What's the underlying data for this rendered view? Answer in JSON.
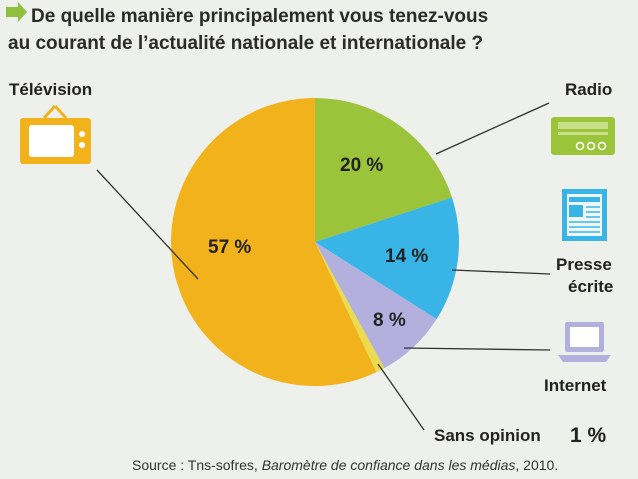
{
  "chart_data": {
    "type": "pie",
    "title_line1": "De quelle manière principalement vous tenez-vous",
    "title_line2": "au courant de l’actualité nationale et internationale ?",
    "slices": [
      {
        "name": "Radio",
        "value": 20,
        "label": "20 %",
        "color": "#9bc43a"
      },
      {
        "name": "Presse écrite",
        "value": 14,
        "label": "14 %",
        "color": "#38b5e6"
      },
      {
        "name": "Internet",
        "value": 8,
        "label": "8 %",
        "color": "#b3b0de"
      },
      {
        "name": "Sans opinion",
        "value": 1,
        "label": "1 %",
        "color": "#eadc4e"
      },
      {
        "name": "Télévision",
        "value": 57,
        "label": "57 %",
        "color": "#f2b21c"
      }
    ],
    "legend_labels": {
      "television": "Télévision",
      "radio": "Radio",
      "presse_line1": "Presse",
      "presse_line2": "écrite",
      "internet": "Internet",
      "sans_opinion": "Sans opinion"
    },
    "source_prefix": "Source : Tns-sofres, ",
    "source_italic": "Baromètre de confiance dans les médias",
    "source_suffix": ", 2010."
  },
  "colors": {
    "arrow": "#8fbf3c",
    "tv_icon": "#f2b21c",
    "radio_icon": "#9bc43a",
    "press_icon": "#38b5e6",
    "internet_icon": "#b3b0de"
  },
  "icons": [
    "television-icon",
    "radio-icon",
    "newspaper-icon",
    "laptop-icon",
    "arrow-icon"
  ]
}
